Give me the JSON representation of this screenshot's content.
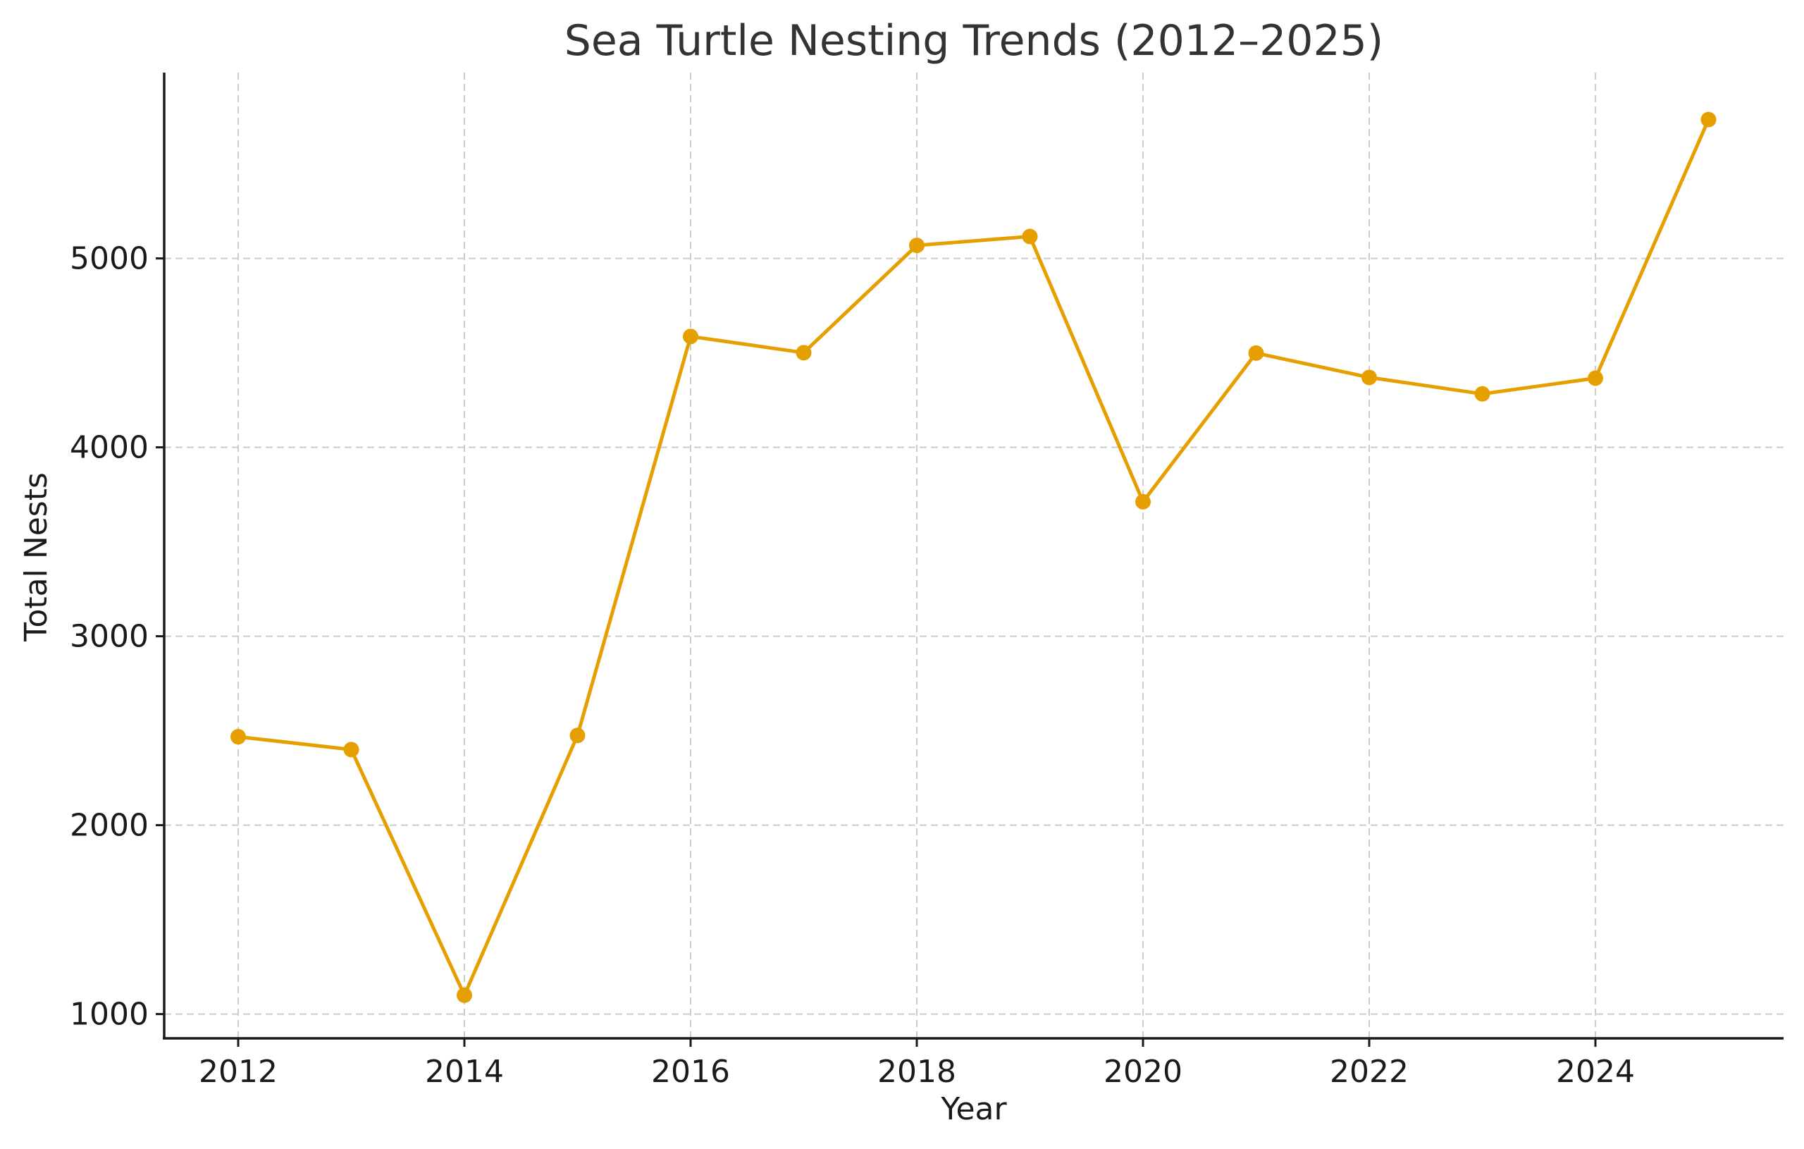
{
  "chart_data": {
    "type": "line",
    "title": "Sea Turtle Nesting Trends (2012–2025)",
    "xlabel": "Year",
    "ylabel": "Total Nests",
    "x": [
      2012,
      2013,
      2014,
      2015,
      2016,
      2017,
      2018,
      2019,
      2020,
      2021,
      2022,
      2023,
      2024,
      2025
    ],
    "series": [
      {
        "name": "Total Nests",
        "color": "#E69F00",
        "marker": "circle",
        "values": [
          2468,
          2400,
          1100,
          2475,
          4587,
          4501,
          5069,
          5116,
          3712,
          4499,
          4370,
          4283,
          4366,
          5735
        ]
      }
    ],
    "xticks": [
      2012,
      2014,
      2016,
      2018,
      2020,
      2022,
      2024
    ],
    "yticks": [
      1000,
      2000,
      3000,
      4000,
      5000
    ],
    "xlim": [
      2011.35,
      2025.65
    ],
    "ylim": [
      870,
      5980
    ],
    "grid": true,
    "grid_style": "dashed",
    "legend": null
  },
  "colors": {
    "line": "#E69F00",
    "grid": "#cccccc",
    "axis": "#1a1a1a",
    "title": "#333333"
  }
}
